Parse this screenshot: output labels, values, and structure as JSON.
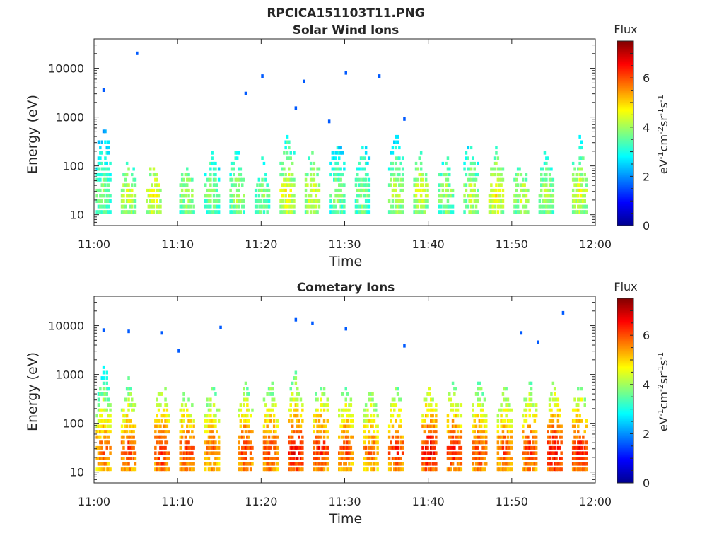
{
  "figure": {
    "title": "RPCICA151103T11.PNG"
  },
  "chart_data": [
    {
      "type": "heatmap",
      "title": "Solar Wind Ions",
      "xlabel": "Time",
      "ylabel": "Energy (eV)",
      "yscale": "log",
      "ylim": [
        6,
        40000
      ],
      "xlim": [
        "11:00",
        "12:00"
      ],
      "x_ticks": [
        "11:00",
        "11:10",
        "11:20",
        "11:30",
        "11:40",
        "11:50",
        "12:00"
      ],
      "y_ticks": [
        "10",
        "100",
        "1000",
        "10000"
      ],
      "colorbar": {
        "label_top": "Flux",
        "unit": "eV-1cm-2sr-1s-1",
        "range": [
          0,
          7.5
        ],
        "ticks": [
          "0",
          "2",
          "4",
          "6"
        ],
        "colormap": "jet"
      },
      "bursts": [
        {
          "t": "11:01",
          "max_energy": 1000,
          "peak_flux": 4.0
        },
        {
          "t": "11:04",
          "max_energy": 300,
          "peak_flux": 4.5
        },
        {
          "t": "11:07",
          "max_energy": 150,
          "peak_flux": 4.8
        },
        {
          "t": "11:11",
          "max_energy": 200,
          "peak_flux": 4.2
        },
        {
          "t": "11:14",
          "max_energy": 300,
          "peak_flux": 4.0
        },
        {
          "t": "11:17",
          "max_energy": 300,
          "peak_flux": 4.2
        },
        {
          "t": "11:20",
          "max_energy": 200,
          "peak_flux": 4.0
        },
        {
          "t": "11:23",
          "max_energy": 700,
          "peak_flux": 4.8
        },
        {
          "t": "11:26",
          "max_energy": 300,
          "peak_flux": 4.6
        },
        {
          "t": "11:29",
          "max_energy": 500,
          "peak_flux": 4.0
        },
        {
          "t": "11:32",
          "max_energy": 500,
          "peak_flux": 4.0
        },
        {
          "t": "11:36",
          "max_energy": 800,
          "peak_flux": 4.4
        },
        {
          "t": "11:39",
          "max_energy": 300,
          "peak_flux": 4.6
        },
        {
          "t": "11:42",
          "max_energy": 300,
          "peak_flux": 4.2
        },
        {
          "t": "11:45",
          "max_energy": 500,
          "peak_flux": 4.3
        },
        {
          "t": "11:48",
          "max_energy": 400,
          "peak_flux": 4.8
        },
        {
          "t": "11:51",
          "max_energy": 300,
          "peak_flux": 4.4
        },
        {
          "t": "11:54",
          "max_energy": 300,
          "peak_flux": 4.2
        },
        {
          "t": "11:58",
          "max_energy": 500,
          "peak_flux": 4.6
        }
      ],
      "sparse_points": [
        {
          "t": "11:01",
          "energy": 3500
        },
        {
          "t": "11:05",
          "energy": 20000
        },
        {
          "t": "11:18",
          "energy": 3000
        },
        {
          "t": "11:20",
          "energy": 6800
        },
        {
          "t": "11:24",
          "energy": 1500
        },
        {
          "t": "11:25",
          "energy": 5300
        },
        {
          "t": "11:30",
          "energy": 7900
        },
        {
          "t": "11:34",
          "energy": 6800
        },
        {
          "t": "11:28",
          "energy": 800
        },
        {
          "t": "11:37",
          "energy": 900
        }
      ]
    },
    {
      "type": "heatmap",
      "title": "Cometary Ions",
      "xlabel": "Time",
      "ylabel": "Energy (eV)",
      "yscale": "log",
      "ylim": [
        6,
        40000
      ],
      "xlim": [
        "11:00",
        "12:00"
      ],
      "x_ticks": [
        "11:00",
        "11:10",
        "11:20",
        "11:30",
        "11:40",
        "11:50",
        "12:00"
      ],
      "y_ticks": [
        "10",
        "100",
        "1000",
        "10000"
      ],
      "colorbar": {
        "label_top": "Flux",
        "unit": "eV-1cm-2sr-1s-1",
        "range": [
          0,
          7.5
        ],
        "ticks": [
          "0",
          "2",
          "4",
          "6"
        ],
        "colormap": "jet"
      },
      "bursts": [
        {
          "t": "11:01",
          "max_energy": 2000,
          "peak_flux": 6.0
        },
        {
          "t": "11:04",
          "max_energy": 1000,
          "peak_flux": 6.2
        },
        {
          "t": "11:08",
          "max_energy": 1000,
          "peak_flux": 6.5
        },
        {
          "t": "11:11",
          "max_energy": 800,
          "peak_flux": 6.3
        },
        {
          "t": "11:14",
          "max_energy": 800,
          "peak_flux": 6.0
        },
        {
          "t": "11:18",
          "max_energy": 900,
          "peak_flux": 6.4
        },
        {
          "t": "11:21",
          "max_energy": 1000,
          "peak_flux": 6.3
        },
        {
          "t": "11:24",
          "max_energy": 1500,
          "peak_flux": 6.8
        },
        {
          "t": "11:27",
          "max_energy": 1000,
          "peak_flux": 6.5
        },
        {
          "t": "11:30",
          "max_energy": 1000,
          "peak_flux": 6.2
        },
        {
          "t": "11:33",
          "max_energy": 800,
          "peak_flux": 6.0
        },
        {
          "t": "11:36",
          "max_energy": 1000,
          "peak_flux": 6.4
        },
        {
          "t": "11:40",
          "max_energy": 1000,
          "peak_flux": 6.8
        },
        {
          "t": "11:43",
          "max_energy": 1200,
          "peak_flux": 6.5
        },
        {
          "t": "11:46",
          "max_energy": 1200,
          "peak_flux": 6.3
        },
        {
          "t": "11:49",
          "max_energy": 800,
          "peak_flux": 6.2
        },
        {
          "t": "11:52",
          "max_energy": 1000,
          "peak_flux": 6.4
        },
        {
          "t": "11:55",
          "max_energy": 1000,
          "peak_flux": 6.8
        },
        {
          "t": "11:58",
          "max_energy": 1000,
          "peak_flux": 6.6
        }
      ],
      "sparse_points": [
        {
          "t": "11:01",
          "energy": 8000
        },
        {
          "t": "11:04",
          "energy": 7500
        },
        {
          "t": "11:08",
          "energy": 7000
        },
        {
          "t": "11:15",
          "energy": 9000
        },
        {
          "t": "11:24",
          "energy": 13000
        },
        {
          "t": "11:26",
          "energy": 11000
        },
        {
          "t": "11:30",
          "energy": 8500
        },
        {
          "t": "11:51",
          "energy": 7000
        },
        {
          "t": "11:56",
          "energy": 18000
        },
        {
          "t": "11:10",
          "energy": 3000
        },
        {
          "t": "11:37",
          "energy": 3800
        },
        {
          "t": "11:53",
          "energy": 4500
        }
      ]
    }
  ]
}
